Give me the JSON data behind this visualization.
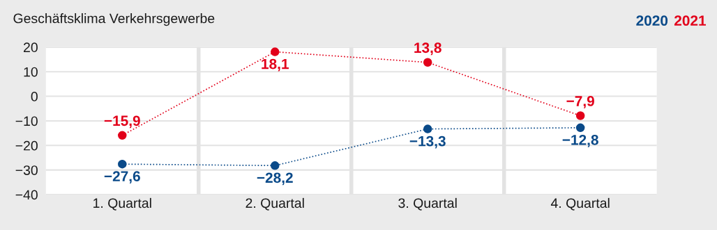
{
  "chart_data": {
    "type": "line",
    "title": "Geschäftsklima Verkehrsgewerbe",
    "categories": [
      "1. Quartal",
      "2. Quartal",
      "3. Quartal",
      "4. Quartal"
    ],
    "series": [
      {
        "name": "2020",
        "color": "#0a4a89",
        "values": [
          -27.6,
          -28.2,
          -13.3,
          -12.8
        ],
        "value_labels": [
          "−27,6",
          "−28,2",
          "−13,3",
          "−12,8"
        ]
      },
      {
        "name": "2021",
        "color": "#e2001a",
        "values": [
          -15.9,
          18.1,
          13.8,
          -7.9
        ],
        "value_labels": [
          "−15,9",
          "18,1",
          "13,8",
          "−7,9"
        ]
      }
    ],
    "ylim": [
      -40,
      20
    ],
    "yticks": [
      {
        "value": -40,
        "label": "−40"
      },
      {
        "value": -30,
        "label": "−30"
      },
      {
        "value": -20,
        "label": "−20"
      },
      {
        "value": -10,
        "label": "−10"
      },
      0,
      10,
      20
    ],
    "grid": true,
    "legend": "top right",
    "marker": "circle",
    "line_style": "dotted"
  }
}
